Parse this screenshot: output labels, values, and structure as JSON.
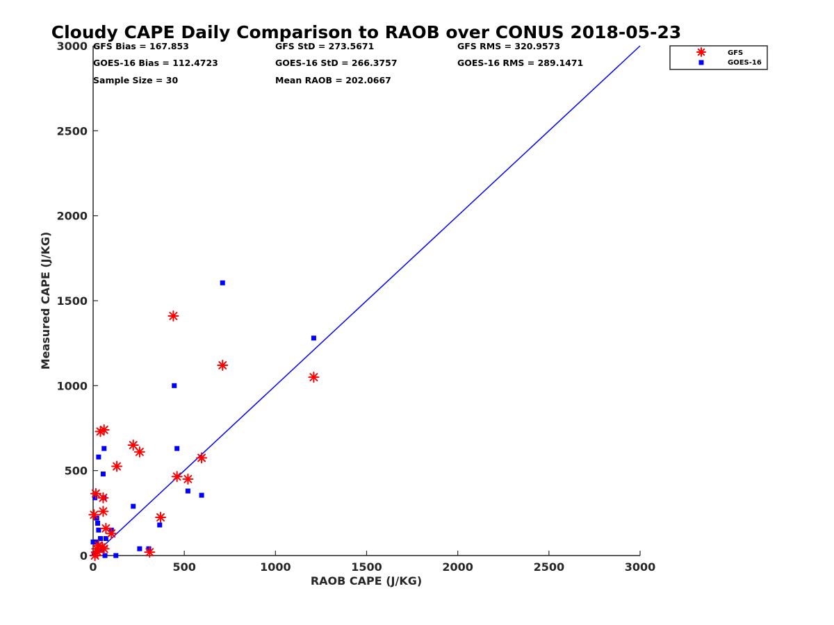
{
  "chart_data": {
    "type": "scatter",
    "title": "Cloudy CAPE Daily Comparison to RAOB over CONUS 2018-05-23",
    "xlabel": "RAOB CAPE (J/KG)",
    "ylabel": "Measured CAPE (J/KG)",
    "xlim": [
      0,
      3000
    ],
    "ylim": [
      0,
      3000
    ],
    "xticks": [
      "0",
      "500",
      "1000",
      "1500",
      "2000",
      "2500",
      "3000"
    ],
    "yticks": [
      "0",
      "500",
      "1000",
      "1500",
      "2000",
      "2500",
      "3000"
    ],
    "grid": false,
    "legend_position": "top-right (outside plot)",
    "reference_line": {
      "from": [
        0,
        0
      ],
      "to": [
        3000,
        3000
      ],
      "color": "#0000ff"
    },
    "stats": [
      "GFS Bias = 167.853",
      "GFS StD = 273.5671",
      "GFS RMS = 320.9573",
      "GOES-16 Bias = 112.4723",
      "GOES-16 StD = 266.3757",
      "GOES-16 RMS = 289.1471",
      "Sample Size = 30",
      "Mean RAOB = 202.0667"
    ],
    "series": [
      {
        "name": "GFS",
        "marker": "asterisk",
        "color": "#ff0000",
        "points": [
          [
            5,
            240
          ],
          [
            10,
            0
          ],
          [
            15,
            365
          ],
          [
            20,
            40
          ],
          [
            25,
            20
          ],
          [
            30,
            60
          ],
          [
            40,
            730
          ],
          [
            60,
            740
          ],
          [
            55,
            340
          ],
          [
            55,
            260
          ],
          [
            50,
            50
          ],
          [
            60,
            40
          ],
          [
            70,
            160
          ],
          [
            100,
            130
          ],
          [
            130,
            525
          ],
          [
            220,
            650
          ],
          [
            255,
            610
          ],
          [
            310,
            20
          ],
          [
            370,
            225
          ],
          [
            440,
            1410
          ],
          [
            460,
            465
          ],
          [
            520,
            450
          ],
          [
            595,
            575
          ],
          [
            710,
            1120
          ],
          [
            1210,
            1050
          ]
        ]
      },
      {
        "name": "GOES-16",
        "marker": "square",
        "color": "#0000ff",
        "points": [
          [
            0,
            80
          ],
          [
            5,
            10
          ],
          [
            10,
            340
          ],
          [
            15,
            80
          ],
          [
            20,
            220
          ],
          [
            25,
            190
          ],
          [
            30,
            150
          ],
          [
            30,
            580
          ],
          [
            40,
            100
          ],
          [
            45,
            30
          ],
          [
            55,
            480
          ],
          [
            60,
            630
          ],
          [
            60,
            340
          ],
          [
            65,
            0
          ],
          [
            70,
            100
          ],
          [
            100,
            150
          ],
          [
            125,
            0
          ],
          [
            220,
            290
          ],
          [
            255,
            40
          ],
          [
            305,
            40
          ],
          [
            365,
            180
          ],
          [
            445,
            1000
          ],
          [
            460,
            630
          ],
          [
            520,
            380
          ],
          [
            595,
            355
          ],
          [
            710,
            1605
          ],
          [
            1210,
            1280
          ]
        ]
      }
    ]
  }
}
